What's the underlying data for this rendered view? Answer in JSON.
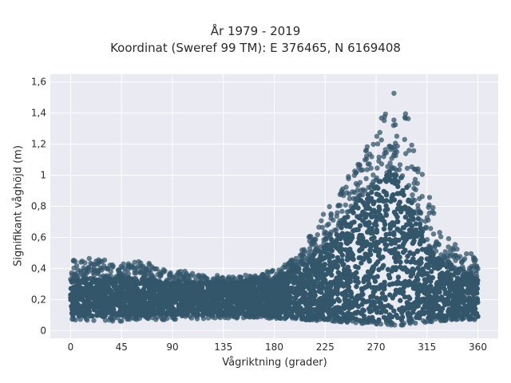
{
  "chart_data": {
    "type": "scatter",
    "title": "År 1979 - 2019",
    "subtitle": "Koordinat (Sweref 99 TM): E 376465, N 6169408",
    "xlabel": "Vågriktning (grader)",
    "ylabel": "Signifikant våghöjd (m)",
    "xlim": [
      -18,
      378
    ],
    "ylim": [
      -0.05,
      1.65
    ],
    "x_ticks": [
      0,
      45,
      90,
      135,
      180,
      225,
      270,
      315,
      360
    ],
    "x_tick_labels": [
      "0",
      "45",
      "90",
      "135",
      "180",
      "225",
      "270",
      "315",
      "360"
    ],
    "y_ticks": [
      0,
      0.2,
      0.4,
      0.6,
      0.8,
      1.0,
      1.2,
      1.4,
      1.6
    ],
    "y_tick_labels": [
      "0",
      "0,2",
      "0,4",
      "0,6",
      "0,8",
      "1",
      "1,2",
      "1,4",
      "1,6"
    ],
    "grid": true,
    "marker_color": "#33566b",
    "background_color": "#e9eaf2",
    "x_range_data": [
      0,
      360
    ],
    "envelope": [
      {
        "x": 0,
        "min": 0.07,
        "max": 0.45
      },
      {
        "x": 20,
        "min": 0.06,
        "max": 0.47
      },
      {
        "x": 45,
        "min": 0.06,
        "max": 0.43
      },
      {
        "x": 60,
        "min": 0.07,
        "max": 0.45
      },
      {
        "x": 90,
        "min": 0.07,
        "max": 0.4
      },
      {
        "x": 135,
        "min": 0.08,
        "max": 0.35
      },
      {
        "x": 160,
        "min": 0.08,
        "max": 0.36
      },
      {
        "x": 180,
        "min": 0.08,
        "max": 0.4
      },
      {
        "x": 200,
        "min": 0.07,
        "max": 0.47
      },
      {
        "x": 225,
        "min": 0.06,
        "max": 0.78
      },
      {
        "x": 250,
        "min": 0.05,
        "max": 1.05
      },
      {
        "x": 270,
        "min": 0.04,
        "max": 1.3
      },
      {
        "x": 285,
        "min": 0.03,
        "max": 1.55
      },
      {
        "x": 300,
        "min": 0.04,
        "max": 1.4
      },
      {
        "x": 315,
        "min": 0.05,
        "max": 0.9
      },
      {
        "x": 330,
        "min": 0.06,
        "max": 0.62
      },
      {
        "x": 345,
        "min": 0.07,
        "max": 0.52
      },
      {
        "x": 360,
        "min": 0.07,
        "max": 0.48
      }
    ],
    "dense_band": [
      {
        "x": 0,
        "low": 0.09,
        "high": 0.33
      },
      {
        "x": 45,
        "low": 0.09,
        "high": 0.34
      },
      {
        "x": 90,
        "low": 0.1,
        "high": 0.31
      },
      {
        "x": 135,
        "low": 0.1,
        "high": 0.3
      },
      {
        "x": 180,
        "low": 0.09,
        "high": 0.33
      },
      {
        "x": 200,
        "low": 0.08,
        "high": 0.4
      },
      {
        "x": 225,
        "low": 0.07,
        "high": 0.55
      },
      {
        "x": 250,
        "low": 0.07,
        "high": 0.8
      },
      {
        "x": 270,
        "low": 0.06,
        "high": 0.95
      },
      {
        "x": 285,
        "low": 0.06,
        "high": 1.05
      },
      {
        "x": 300,
        "low": 0.07,
        "high": 0.9
      },
      {
        "x": 315,
        "low": 0.08,
        "high": 0.55
      },
      {
        "x": 340,
        "low": 0.08,
        "high": 0.4
      },
      {
        "x": 360,
        "low": 0.09,
        "high": 0.33
      }
    ]
  }
}
